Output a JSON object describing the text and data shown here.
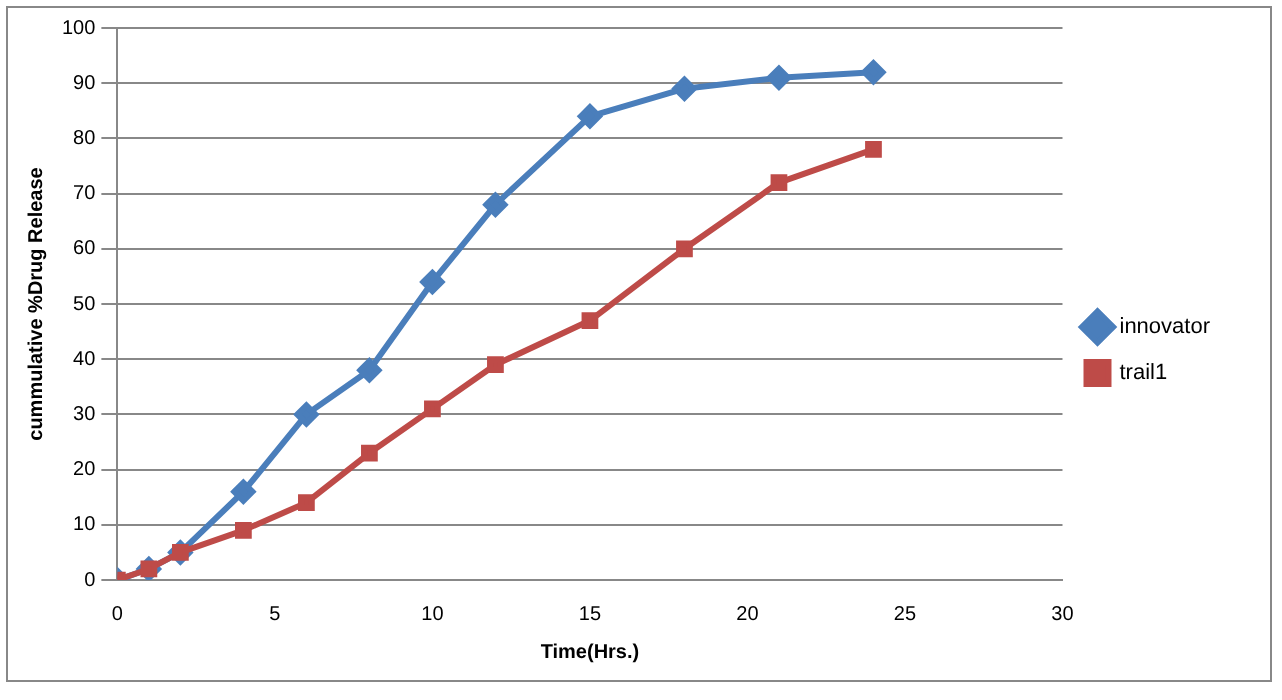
{
  "chart_data": {
    "type": "line",
    "xlabel": "Time(Hrs.)",
    "ylabel": "cummulative %Drug Release",
    "xlim": [
      0,
      30
    ],
    "xticks": [
      0,
      5,
      10,
      15,
      20,
      25,
      30
    ],
    "ylim": [
      0,
      100
    ],
    "yticks": [
      0,
      10,
      20,
      30,
      40,
      50,
      60,
      70,
      80,
      90,
      100
    ],
    "grid": "y",
    "legend": "right",
    "line_style": "solid",
    "series": [
      {
        "name": "innovator",
        "color": "#4a7ebb",
        "marker": "diamond",
        "x": [
          0,
          1,
          2,
          4,
          6,
          8,
          10,
          12,
          15,
          18,
          21,
          24
        ],
        "values": [
          0,
          2,
          5,
          16,
          30,
          38,
          54,
          68,
          84,
          89,
          91,
          92
        ]
      },
      {
        "name": "trail1",
        "color": "#be4b48",
        "marker": "square",
        "x": [
          0,
          1,
          2,
          4,
          6,
          8,
          10,
          12,
          15,
          18,
          21,
          24
        ],
        "values": [
          0,
          2,
          5,
          9,
          14,
          23,
          31,
          39,
          47,
          60,
          72,
          78
        ]
      }
    ]
  }
}
